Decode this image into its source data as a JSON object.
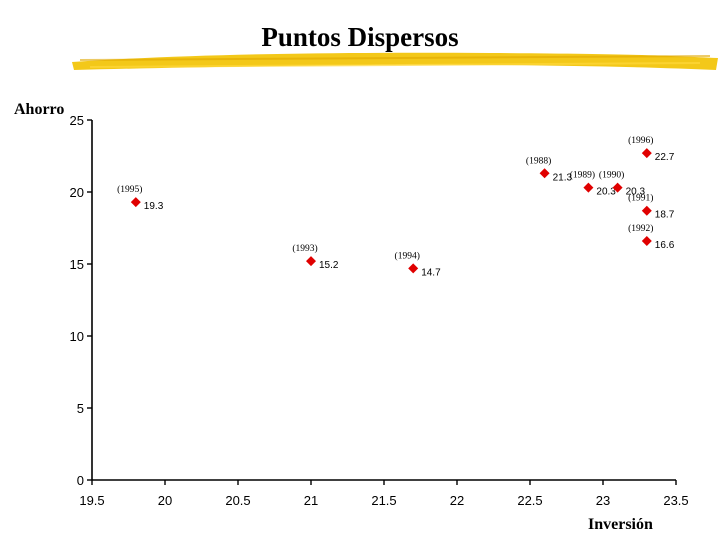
{
  "slide": {
    "title": "Puntos Dispersos",
    "accent_color": "#f2c200",
    "marker_color": "#e00000"
  },
  "chart_data": {
    "type": "scatter",
    "title": "Puntos Dispersos",
    "xlabel": "Inversión",
    "ylabel": "Ahorro",
    "xlim": [
      19.5,
      23.5
    ],
    "ylim": [
      0,
      25
    ],
    "xticks": [
      "19.5",
      "20",
      "20.5",
      "21",
      "21.5",
      "22",
      "22.5",
      "23",
      "23.5"
    ],
    "yticks": [
      "0",
      "5",
      "10",
      "15",
      "20",
      "25"
    ],
    "grid": false,
    "points": [
      {
        "year": "(1988)",
        "x": 22.6,
        "y": 21.3,
        "label": "21.3"
      },
      {
        "year": "(1989)",
        "x": 22.9,
        "y": 20.3,
        "label": "20.3"
      },
      {
        "year": "(1990)",
        "x": 23.1,
        "y": 20.3,
        "label": "20.3"
      },
      {
        "year": "(1991)",
        "x": 23.3,
        "y": 18.7,
        "label": "18.7"
      },
      {
        "year": "(1992)",
        "x": 23.3,
        "y": 16.6,
        "label": "16.6"
      },
      {
        "year": "(1993)",
        "x": 21.0,
        "y": 15.2,
        "label": "15.2"
      },
      {
        "year": "(1994)",
        "x": 21.7,
        "y": 14.7,
        "label": "14.7"
      },
      {
        "year": "(1995)",
        "x": 19.8,
        "y": 19.3,
        "label": "19.3"
      },
      {
        "year": "(1996)",
        "x": 23.3,
        "y": 22.7,
        "label": "22.7"
      }
    ]
  }
}
